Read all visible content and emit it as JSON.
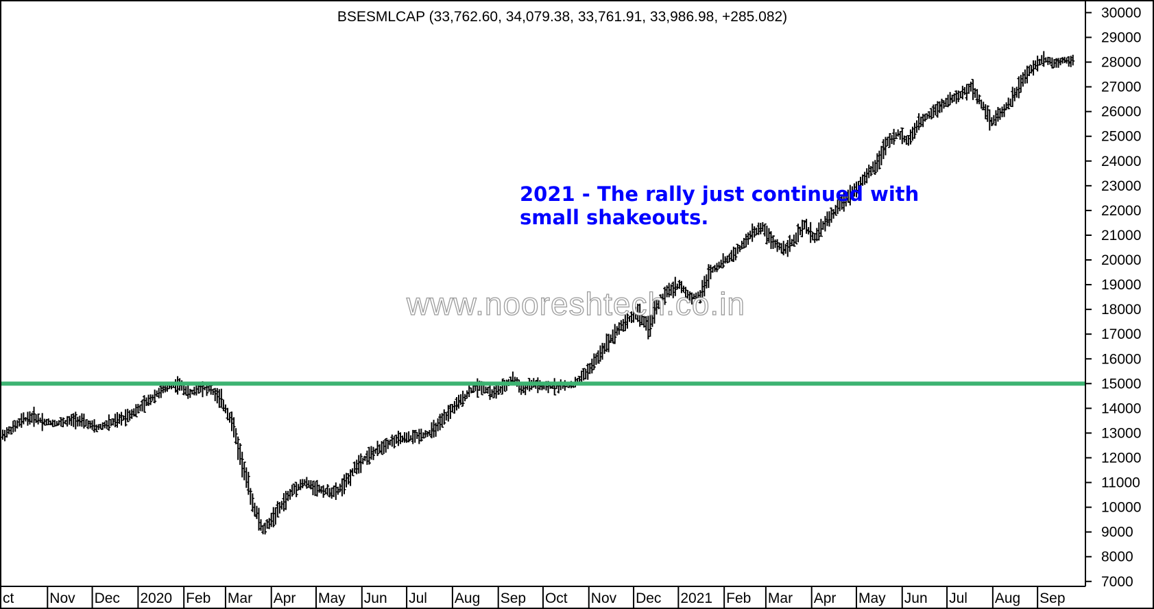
{
  "chart_data": {
    "type": "ohlc",
    "title": "BSESMLCAP (33,762.60, 34,079.38, 33,761.91, 33,986.98, +285.082)",
    "ylim": [
      6800,
      30400
    ],
    "yticks": [
      7000,
      8000,
      9000,
      10000,
      11000,
      12000,
      13000,
      14000,
      15000,
      16000,
      17000,
      18000,
      19000,
      20000,
      21000,
      22000,
      23000,
      24000,
      25000,
      26000,
      27000,
      28000,
      29000,
      30000
    ],
    "ytick_labels": [
      "7000",
      "8000",
      "9000",
      "10000",
      "11000",
      "12000",
      "13000",
      "14000",
      "15000",
      "16000",
      "17000",
      "18000",
      "19000",
      "20000",
      "21000",
      "22000",
      "23000",
      "24000",
      "25000",
      "26000",
      "27000",
      "28000",
      "29000",
      "30000"
    ],
    "xlim": [
      0,
      104
    ],
    "x_unit": "trading weeks from start of Oct 2019",
    "xticks": [
      {
        "label": "ct",
        "x": 0
      },
      {
        "label": "Nov",
        "x": 4.3
      },
      {
        "label": "Dec",
        "x": 8.6
      },
      {
        "label": "2020",
        "x": 13
      },
      {
        "label": "Feb",
        "x": 17.4
      },
      {
        "label": "Mar",
        "x": 21.4
      },
      {
        "label": "Apr",
        "x": 25.8
      },
      {
        "label": "May",
        "x": 30.1
      },
      {
        "label": "Jun",
        "x": 34.5
      },
      {
        "label": "Jul",
        "x": 38.8
      },
      {
        "label": "Aug",
        "x": 43.2
      },
      {
        "label": "Sep",
        "x": 47.6
      },
      {
        "label": "Oct",
        "x": 51.9
      },
      {
        "label": "Nov",
        "x": 56.3
      },
      {
        "label": "Dec",
        "x": 60.6
      },
      {
        "label": "2021",
        "x": 64.9
      },
      {
        "label": "Feb",
        "x": 69.3
      },
      {
        "label": "Mar",
        "x": 73.3
      },
      {
        "label": "Apr",
        "x": 77.7
      },
      {
        "label": "May",
        "x": 82
      },
      {
        "label": "Jun",
        "x": 86.4
      },
      {
        "label": "Jul",
        "x": 90.7
      },
      {
        "label": "Aug",
        "x": 95.1
      },
      {
        "label": "Sep",
        "x": 99.4
      }
    ],
    "series": [
      {
        "points": [
          [
            0,
            12900
          ],
          [
            1,
            13200
          ],
          [
            2,
            13550
          ],
          [
            3,
            13650
          ],
          [
            4,
            13450
          ],
          [
            5,
            13400
          ],
          [
            6,
            13450
          ],
          [
            7,
            13550
          ],
          [
            8,
            13400
          ],
          [
            9,
            13200
          ],
          [
            10,
            13350
          ],
          [
            11,
            13500
          ],
          [
            12,
            13700
          ],
          [
            13,
            13950
          ],
          [
            14,
            14300
          ],
          [
            15,
            14650
          ],
          [
            16,
            14900
          ],
          [
            17,
            14950
          ],
          [
            18,
            14600
          ],
          [
            19,
            14850
          ],
          [
            20,
            14750
          ],
          [
            21,
            14300
          ],
          [
            22,
            13500
          ],
          [
            23,
            11800
          ],
          [
            24,
            10200
          ],
          [
            25,
            9050
          ],
          [
            26,
            9600
          ],
          [
            27,
            10200
          ],
          [
            28,
            10750
          ],
          [
            29,
            11000
          ],
          [
            30,
            10800
          ],
          [
            31,
            10650
          ],
          [
            32,
            10600
          ],
          [
            33,
            11000
          ],
          [
            34,
            11700
          ],
          [
            35,
            12050
          ],
          [
            36,
            12300
          ],
          [
            37,
            12600
          ],
          [
            38,
            12750
          ],
          [
            39,
            12800
          ],
          [
            40,
            12900
          ],
          [
            41,
            13000
          ],
          [
            42,
            13350
          ],
          [
            43,
            13900
          ],
          [
            44,
            14300
          ],
          [
            45,
            14750
          ],
          [
            46,
            14900
          ],
          [
            47,
            14600
          ],
          [
            48,
            14800
          ],
          [
            49,
            15200
          ],
          [
            50,
            14750
          ],
          [
            51,
            15000
          ],
          [
            52,
            14850
          ],
          [
            53,
            14900
          ],
          [
            54,
            14900
          ],
          [
            55,
            15000
          ],
          [
            56,
            15400
          ],
          [
            57,
            15950
          ],
          [
            58,
            16600
          ],
          [
            59,
            17150
          ],
          [
            60,
            17550
          ],
          [
            61,
            17900
          ],
          [
            62,
            17200
          ],
          [
            63,
            18300
          ],
          [
            64,
            18750
          ],
          [
            65,
            19000
          ],
          [
            66,
            18500
          ],
          [
            67,
            18550
          ],
          [
            68,
            19550
          ],
          [
            69,
            19850
          ],
          [
            70,
            20150
          ],
          [
            71,
            20550
          ],
          [
            72,
            21100
          ],
          [
            73,
            21300
          ],
          [
            74,
            20700
          ],
          [
            75,
            20450
          ],
          [
            76,
            20750
          ],
          [
            77,
            21400
          ],
          [
            78,
            20900
          ],
          [
            79,
            21500
          ],
          [
            80,
            22000
          ],
          [
            81,
            22500
          ],
          [
            82,
            22900
          ],
          [
            83,
            23400
          ],
          [
            84,
            23900
          ],
          [
            85,
            24800
          ],
          [
            86,
            25100
          ],
          [
            87,
            24800
          ],
          [
            88,
            25500
          ],
          [
            89,
            25900
          ],
          [
            90,
            26200
          ],
          [
            91,
            26500
          ],
          [
            92,
            26650
          ],
          [
            93,
            27000
          ],
          [
            94,
            26350
          ],
          [
            95,
            25600
          ],
          [
            96,
            26000
          ],
          [
            97,
            26500
          ],
          [
            98,
            27300
          ],
          [
            99,
            27800
          ],
          [
            100,
            28150
          ],
          [
            101,
            27950
          ],
          [
            102,
            28100
          ],
          [
            103,
            28050
          ]
        ]
      }
    ],
    "reference_line": {
      "y": 15000,
      "color": "#3cb371"
    },
    "annotation": {
      "lines": [
        "2021 - The rally just continued with",
        "small shakeouts."
      ],
      "color": "#0000ff"
    },
    "watermark": "www.nooreshtech.co.in",
    "grid": false
  }
}
